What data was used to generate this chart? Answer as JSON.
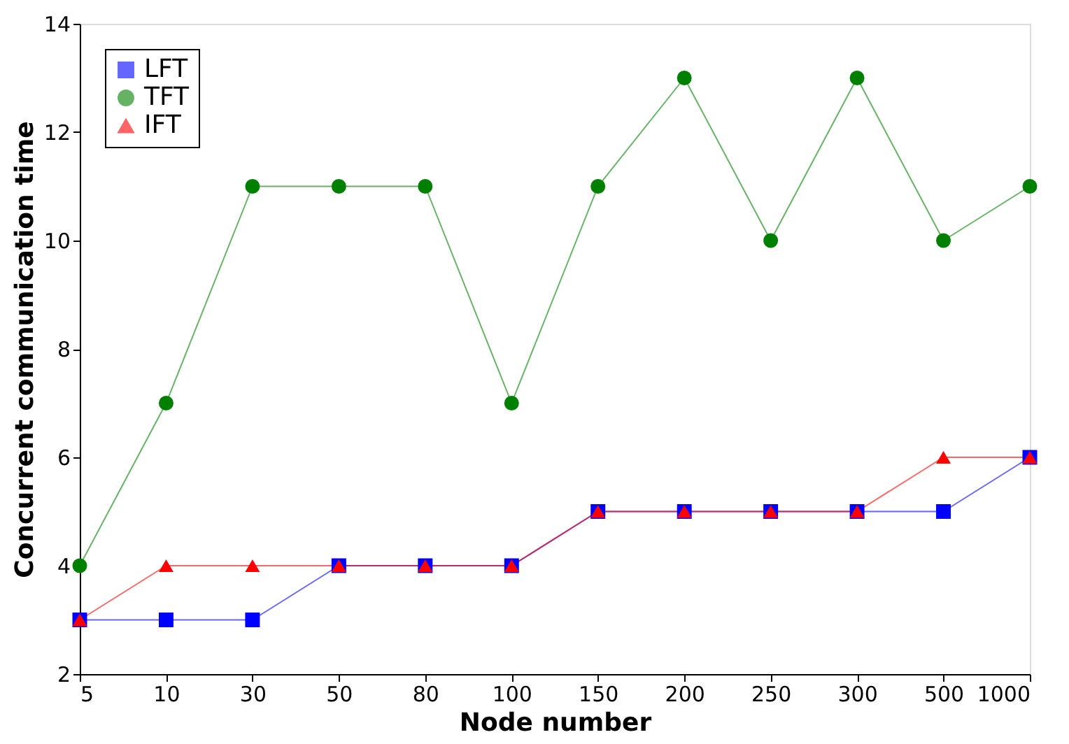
{
  "chart_data": {
    "type": "line",
    "xlabel": "Node number",
    "ylabel": "Concurrent communication time",
    "categories": [
      "5",
      "10",
      "30",
      "50",
      "80",
      "100",
      "150",
      "200",
      "250",
      "300",
      "500",
      "1000"
    ],
    "ylim": [
      2,
      14
    ],
    "yticks": [
      2,
      4,
      6,
      8,
      10,
      12,
      14
    ],
    "grid": false,
    "legend": "top left",
    "line_style": "solid",
    "series": [
      {
        "name": "LFT",
        "color": "#0000ff",
        "marker": "square",
        "values": [
          3,
          3,
          3,
          4,
          4,
          4,
          5,
          5,
          5,
          5,
          5,
          6
        ]
      },
      {
        "name": "TFT",
        "color": "#008000",
        "marker": "circle",
        "values": [
          4,
          7,
          11,
          11,
          11,
          7,
          11,
          13,
          10,
          13,
          10,
          11
        ]
      },
      {
        "name": "IFT",
        "color": "#ff0000",
        "marker": "triangle",
        "values": [
          3,
          4,
          4,
          4,
          4,
          4,
          5,
          5,
          5,
          5,
          6,
          6
        ]
      }
    ]
  }
}
